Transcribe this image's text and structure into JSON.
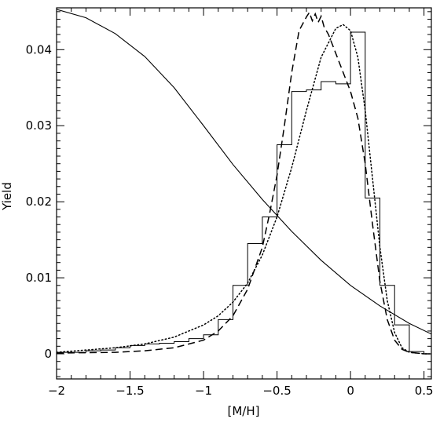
{
  "chart_data": {
    "type": "line",
    "title": "",
    "xlabel": "[M/H]",
    "ylabel": "Yield",
    "xlim": [
      -2.0,
      0.55
    ],
    "ylim": [
      -0.0033,
      0.0455
    ],
    "grid": false,
    "legend": "none",
    "x_ticks": [
      {
        "value": -2.0,
        "label": "−2"
      },
      {
        "value": -1.5,
        "label": "−1.5"
      },
      {
        "value": -1.0,
        "label": "−1"
      },
      {
        "value": -0.5,
        "label": "−0.5"
      },
      {
        "value": 0.0,
        "label": "0"
      },
      {
        "value": 0.5,
        "label": "0.5"
      }
    ],
    "y_ticks": [
      {
        "value": 0.0,
        "label": "0"
      },
      {
        "value": 0.01,
        "label": "0.01"
      },
      {
        "value": 0.02,
        "label": "0.02"
      },
      {
        "value": 0.03,
        "label": "0.03"
      },
      {
        "value": 0.04,
        "label": "0.04"
      }
    ],
    "series": [
      {
        "style": "solid",
        "x": [
          -2.0,
          -1.8,
          -1.6,
          -1.4,
          -1.2,
          -1.0,
          -0.8,
          -0.6,
          -0.5,
          -0.4,
          -0.2,
          0.0,
          0.2,
          0.4,
          0.55
        ],
        "y": [
          0.0453,
          0.0442,
          0.0421,
          0.0391,
          0.035,
          0.03,
          0.0249,
          0.0203,
          0.0182,
          0.0161,
          0.0123,
          0.009,
          0.0063,
          0.004,
          0.0026
        ]
      },
      {
        "style": "dotted",
        "x": [
          -2.0,
          -1.6,
          -1.4,
          -1.2,
          -1.0,
          -0.9,
          -0.8,
          -0.7,
          -0.6,
          -0.5,
          -0.4,
          -0.3,
          -0.2,
          -0.1,
          -0.05,
          0.0,
          0.05,
          0.1,
          0.15,
          0.2,
          0.25,
          0.3,
          0.35,
          0.4,
          0.45,
          0.5,
          0.55
        ],
        "y": [
          0.0002,
          0.0008,
          0.0013,
          0.0022,
          0.0038,
          0.005,
          0.0068,
          0.0093,
          0.013,
          0.018,
          0.0245,
          0.032,
          0.039,
          0.0428,
          0.0433,
          0.0425,
          0.039,
          0.032,
          0.023,
          0.014,
          0.007,
          0.0028,
          0.0008,
          0.0002,
          0.0001,
          0.0,
          0.0
        ]
      },
      {
        "style": "dashed",
        "x": [
          -2.0,
          -1.6,
          -1.4,
          -1.2,
          -1.0,
          -0.9,
          -0.8,
          -0.7,
          -0.6,
          -0.55,
          -0.5,
          -0.45,
          -0.4,
          -0.35,
          -0.3,
          -0.28,
          -0.26,
          -0.24,
          -0.22,
          -0.2,
          -0.18,
          -0.15,
          -0.1,
          -0.05,
          0.0,
          0.05,
          0.1,
          0.15,
          0.2,
          0.25,
          0.3,
          0.35,
          0.4,
          0.45,
          0.5,
          0.55
        ],
        "y": [
          0.0001,
          0.0002,
          0.0004,
          0.0008,
          0.0018,
          0.003,
          0.005,
          0.0085,
          0.014,
          0.0185,
          0.0235,
          0.03,
          0.037,
          0.0425,
          0.0443,
          0.0449,
          0.0438,
          0.0447,
          0.0436,
          0.0444,
          0.043,
          0.042,
          0.0395,
          0.037,
          0.0345,
          0.031,
          0.025,
          0.017,
          0.0095,
          0.0045,
          0.0018,
          0.0006,
          0.0002,
          0.0001,
          0.0,
          0.0
        ]
      },
      {
        "style": "step",
        "bin_width": 0.1,
        "bin_starts": [
          -2.0,
          -1.9,
          -1.8,
          -1.7,
          -1.6,
          -1.5,
          -1.4,
          -1.3,
          -1.2,
          -1.1,
          -1.0,
          -0.9,
          -0.8,
          -0.7,
          -0.6,
          -0.5,
          -0.4,
          -0.3,
          -0.2,
          -0.1,
          0.0,
          0.1,
          0.2,
          0.3,
          0.4,
          0.5
        ],
        "heights": [
          0.0002,
          0.0002,
          0.0004,
          0.0005,
          0.0008,
          0.0011,
          0.0013,
          0.0014,
          0.0016,
          0.002,
          0.0025,
          0.0045,
          0.009,
          0.0145,
          0.018,
          0.0275,
          0.0345,
          0.0347,
          0.0358,
          0.0355,
          0.0423,
          0.0205,
          0.009,
          0.0038,
          0.0003,
          0.0
        ]
      }
    ]
  }
}
